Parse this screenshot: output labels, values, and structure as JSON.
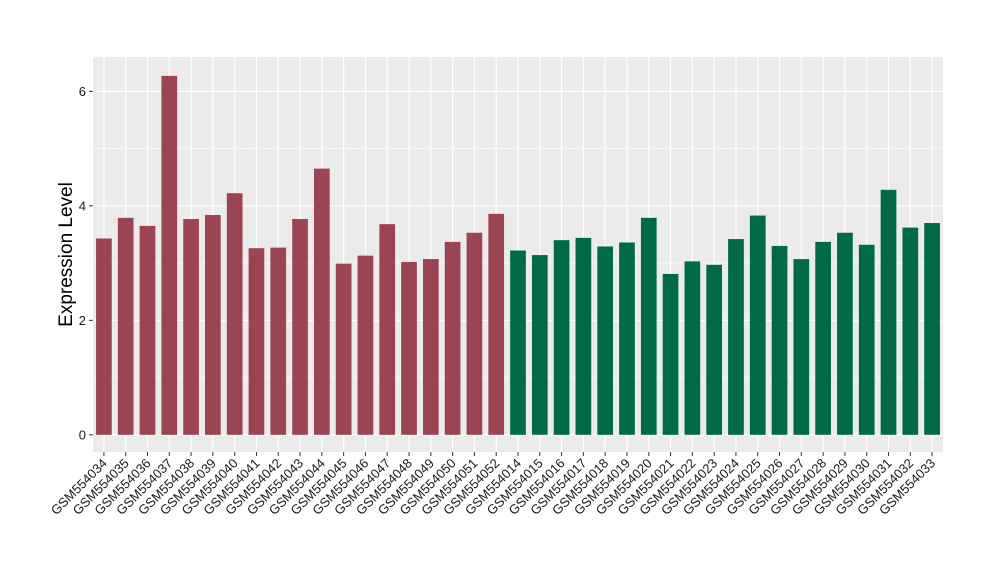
{
  "chart_data": {
    "type": "bar",
    "ylabel": "Expression Level",
    "xlabel": "",
    "title": "",
    "ylim": [
      -0.3,
      6.6
    ],
    "yticks": [
      0,
      2,
      4,
      6
    ],
    "grid": true,
    "legend": "none",
    "colors": {
      "panel": "#EBEBEB",
      "grid": "#FFFFFF",
      "group1": "#9B4452",
      "group2": "#006A47"
    },
    "categories": [
      "GSM554034",
      "GSM554035",
      "GSM554036",
      "GSM554037",
      "GSM554038",
      "GSM554039",
      "GSM554040",
      "GSM554041",
      "GSM554042",
      "GSM554043",
      "GSM554044",
      "GSM554045",
      "GSM554046",
      "GSM554047",
      "GSM554048",
      "GSM554049",
      "GSM554050",
      "GSM554051",
      "GSM554052",
      "GSM554014",
      "GSM554015",
      "GSM554016",
      "GSM554017",
      "GSM554018",
      "GSM554019",
      "GSM554020",
      "GSM554021",
      "GSM554022",
      "GSM554023",
      "GSM554024",
      "GSM554025",
      "GSM554026",
      "GSM554027",
      "GSM554028",
      "GSM554029",
      "GSM554030",
      "GSM554031",
      "GSM554032",
      "GSM554033"
    ],
    "values": [
      3.43,
      3.79,
      3.65,
      6.27,
      3.77,
      3.84,
      4.22,
      3.26,
      3.27,
      3.77,
      4.65,
      2.99,
      3.13,
      3.68,
      3.02,
      3.07,
      3.37,
      3.53,
      3.86,
      3.22,
      3.14,
      3.4,
      3.44,
      3.29,
      3.36,
      3.79,
      2.81,
      3.03,
      2.97,
      3.42,
      3.83,
      3.3,
      3.07,
      3.37,
      3.53,
      3.32,
      4.28,
      3.62,
      3.7
    ],
    "groups": [
      1,
      1,
      1,
      1,
      1,
      1,
      1,
      1,
      1,
      1,
      1,
      1,
      1,
      1,
      1,
      1,
      1,
      1,
      1,
      2,
      2,
      2,
      2,
      2,
      2,
      2,
      2,
      2,
      2,
      2,
      2,
      2,
      2,
      2,
      2,
      2,
      2,
      2,
      2
    ]
  }
}
